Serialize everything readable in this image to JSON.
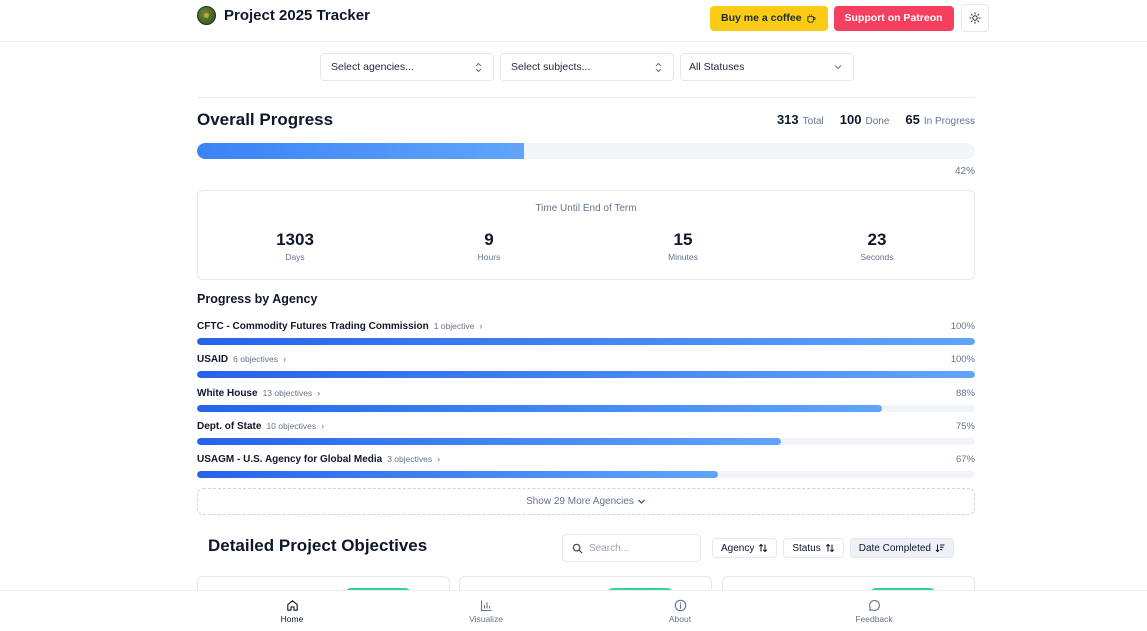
{
  "header": {
    "title": "Project 2025 Tracker",
    "coffee_label": "Buy me a coffee",
    "patreon_label": "Support on Patreon"
  },
  "filters": {
    "agencies_placeholder": "Select agencies...",
    "subjects_placeholder": "Select subjects...",
    "status_value": "All Statuses"
  },
  "overall": {
    "title": "Overall Progress",
    "total_num": "313",
    "total_label": "Total",
    "done_num": "100",
    "done_label": "Done",
    "inprogress_num": "65",
    "inprogress_label": "In Progress",
    "percent": 42,
    "percent_label": "42%"
  },
  "countdown": {
    "title": "Time Until End of Term",
    "cells": [
      {
        "value": "1303",
        "unit": "Days"
      },
      {
        "value": "9",
        "unit": "Hours"
      },
      {
        "value": "15",
        "unit": "Minutes"
      },
      {
        "value": "23",
        "unit": "Seconds"
      }
    ]
  },
  "agencies": {
    "title": "Progress by Agency",
    "items": [
      {
        "name": "CFTC - Commodity Futures Trading Commission",
        "count": "1 objective",
        "percent": 100,
        "percent_label": "100%"
      },
      {
        "name": "USAID",
        "count": "6 objectives",
        "percent": 100,
        "percent_label": "100%"
      },
      {
        "name": "White House",
        "count": "13 objectives",
        "percent": 88,
        "percent_label": "88%"
      },
      {
        "name": "Dept. of State",
        "count": "10 objectives",
        "percent": 75,
        "percent_label": "75%"
      },
      {
        "name": "USAGM - U.S. Agency for Global Media",
        "count": "3 objectives",
        "percent": 67,
        "percent_label": "67%"
      }
    ],
    "show_more_label": "Show 29 More Agencies"
  },
  "objectives": {
    "title": "Detailed Project Objectives",
    "search_placeholder": "Search...",
    "sort_agency": "Agency",
    "sort_status": "Status",
    "sort_date": "Date Completed"
  },
  "nav": {
    "home": "Home",
    "visualize": "Visualize",
    "about": "About",
    "feedback": "Feedback"
  },
  "colors": {
    "coffee": "#facc15",
    "patreon": "#f43f5e",
    "progress": "#3b82f6",
    "badge": "#34d399"
  }
}
